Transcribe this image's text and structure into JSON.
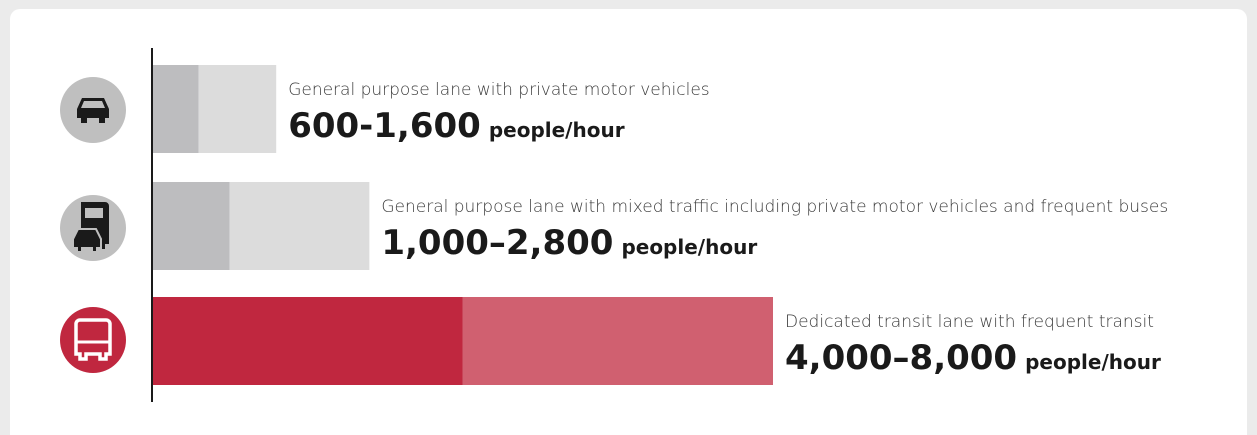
{
  "chart_data": {
    "type": "range-bar",
    "orientation": "horizontal",
    "categories": [
      "General purpose lane with private motor vehicles",
      "General purpose lane with mixed traffic including private motor vehicles and frequent buses",
      "Dedicated transit lane with frequent transit"
    ],
    "series": [
      {
        "values": [
          600,
          1000,
          4000
        ],
        "colors": [
          "#bdbdbf",
          "#bdbdbf",
          "#c0273f"
        ]
      },
      {
        "values": [
          1600,
          2800,
          8000
        ],
        "colors": [
          "#dcdcdc",
          "#dcdcdc",
          "#d06070"
        ]
      }
    ],
    "value_labels": [
      "600-1,600",
      "1,000–2,800",
      "4,000–8,000"
    ],
    "unit": "people/hour",
    "icon_colors": [
      "#bfbfbf",
      "#bfbfbf",
      "#c0273f"
    ]
  }
}
